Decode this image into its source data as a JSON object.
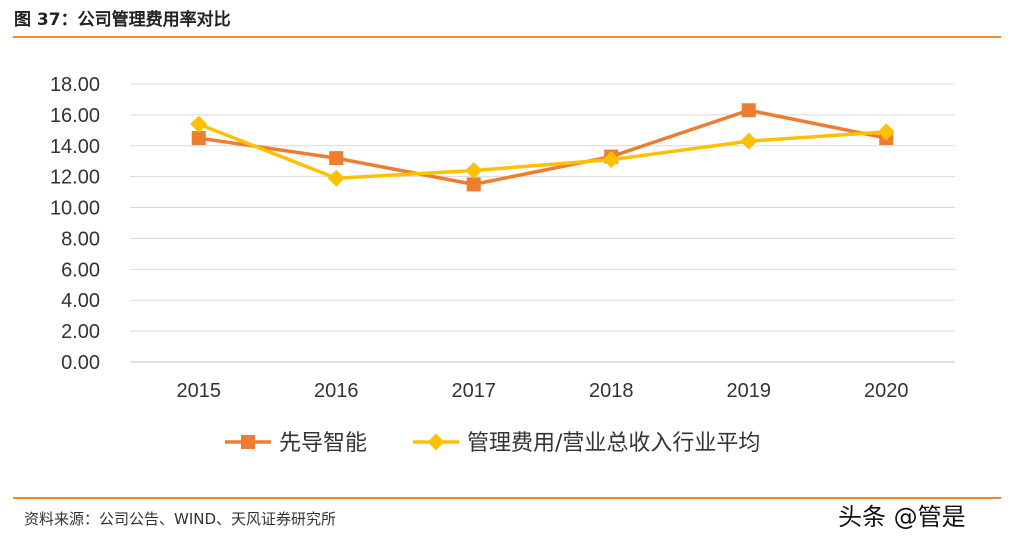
{
  "figure": {
    "title": "图 37：公司管理费用率对比",
    "source": "资料来源：公司公告、WIND、天风证券研究所",
    "watermark": "头条 @管是"
  },
  "chart_data": {
    "type": "line",
    "title": "",
    "xlabel": "",
    "ylabel": "",
    "categories": [
      "2015",
      "2016",
      "2017",
      "2018",
      "2019",
      "2020"
    ],
    "ylim": [
      0,
      18
    ],
    "yticks": [
      "0.00",
      "2.00",
      "4.00",
      "6.00",
      "8.00",
      "10.00",
      "12.00",
      "14.00",
      "16.00",
      "18.00"
    ],
    "grid": true,
    "legend": "bottom",
    "series": [
      {
        "name": "先导智能",
        "color": "#ed7d31",
        "marker": "square",
        "values": [
          14.5,
          13.2,
          11.5,
          13.3,
          16.3,
          14.5
        ]
      },
      {
        "name": "管理费用/营业总收入行业平均",
        "color": "#ffc000",
        "marker": "diamond",
        "values": [
          15.4,
          11.9,
          12.4,
          13.1,
          14.3,
          14.9
        ]
      }
    ]
  }
}
